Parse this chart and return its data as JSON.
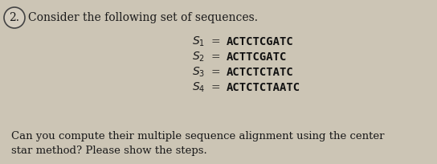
{
  "question_number": "2.",
  "intro_text": "Consider the following set of sequences.",
  "sequences": [
    {
      "label": "$S_1$",
      "seq": "ACTCTCGATC"
    },
    {
      "label": "$S_2$",
      "seq": "ACTTCGATC"
    },
    {
      "label": "$S_3$",
      "seq": "ACTCTCTATC"
    },
    {
      "label": "$S_4$",
      "seq": "ACTCTCTAATC"
    }
  ],
  "footer_line1": "Can you compute their multiple sequence alignment using the center",
  "footer_line2": "star method? Please show the steps.",
  "bg_color": "#ccc5b5",
  "text_color": "#1a1a1a",
  "mono_color": "#111111",
  "circle_color": "#d4cdbf",
  "circle_edge": "#444444",
  "fig_width": 5.44,
  "fig_height": 2.04,
  "dpi": 100
}
